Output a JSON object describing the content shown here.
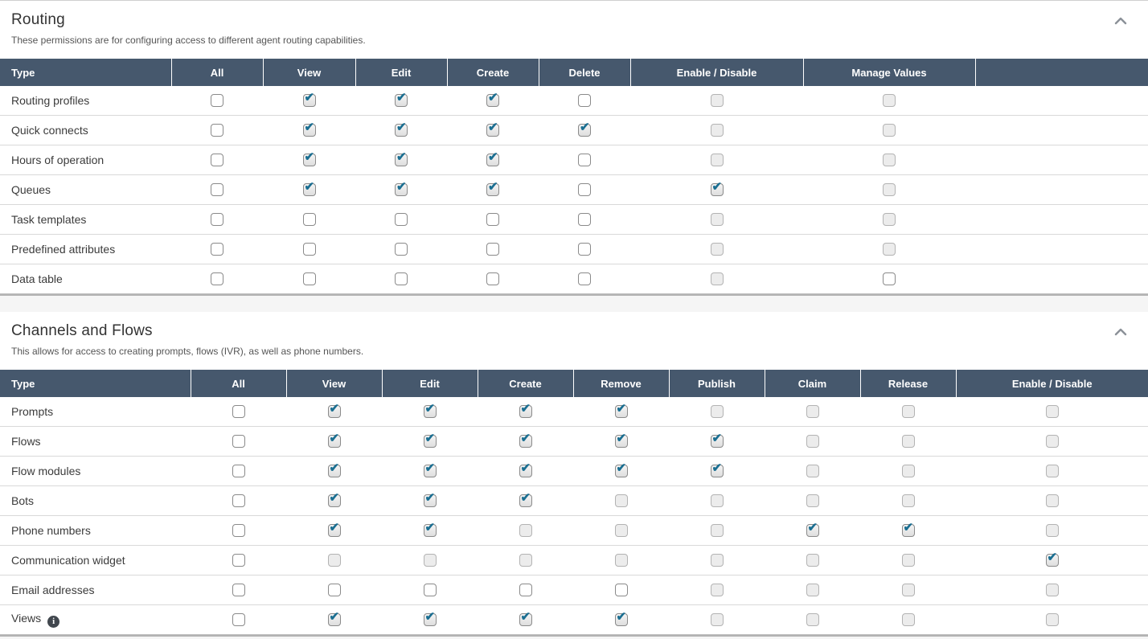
{
  "colors": {
    "table_header_bg": "#46586d",
    "table_header_text": "#ffffff",
    "checkmark": "#1a6e91",
    "disabled_checkbox_bg": "#ececec",
    "divider": "#b3b3b3"
  },
  "icons": {
    "collapse": "chevron-up",
    "checkmark_glyph": "✔",
    "info_glyph": "i"
  },
  "sections": [
    {
      "title": "Routing",
      "description": "These permissions are for configuring access to different agent routing capabilities.",
      "columns": [
        "Type",
        "All",
        "View",
        "Edit",
        "Create",
        "Delete",
        "Enable / Disable",
        "Manage Values",
        ""
      ],
      "rows": [
        {
          "label": "Routing profiles",
          "cells": [
            "unchecked",
            "checked",
            "checked",
            "checked",
            "unchecked",
            "disabled",
            "disabled"
          ]
        },
        {
          "label": "Quick connects",
          "cells": [
            "unchecked",
            "checked",
            "checked",
            "checked",
            "checked",
            "disabled",
            "disabled"
          ]
        },
        {
          "label": "Hours of operation",
          "cells": [
            "unchecked",
            "checked",
            "checked",
            "checked",
            "unchecked",
            "disabled",
            "disabled"
          ]
        },
        {
          "label": "Queues",
          "cells": [
            "unchecked",
            "checked",
            "checked",
            "checked",
            "unchecked",
            "checked",
            "disabled"
          ]
        },
        {
          "label": "Task templates",
          "cells": [
            "unchecked",
            "unchecked",
            "unchecked",
            "unchecked",
            "unchecked",
            "disabled",
            "disabled"
          ]
        },
        {
          "label": "Predefined attributes",
          "cells": [
            "unchecked",
            "unchecked",
            "unchecked",
            "unchecked",
            "unchecked",
            "disabled",
            "disabled"
          ]
        },
        {
          "label": "Data table",
          "cells": [
            "unchecked",
            "unchecked",
            "unchecked",
            "unchecked",
            "unchecked",
            "disabled",
            "unchecked"
          ]
        }
      ]
    },
    {
      "title": "Channels and Flows",
      "description": "This allows for access to creating prompts, flows (IVR), as well as phone numbers.",
      "columns": [
        "Type",
        "All",
        "View",
        "Edit",
        "Create",
        "Remove",
        "Publish",
        "Claim",
        "Release",
        "Enable / Disable"
      ],
      "rows": [
        {
          "label": "Prompts",
          "cells": [
            "unchecked",
            "checked",
            "checked",
            "checked",
            "checked",
            "disabled",
            "disabled",
            "disabled",
            "disabled"
          ]
        },
        {
          "label": "Flows",
          "cells": [
            "unchecked",
            "checked",
            "checked",
            "checked",
            "checked",
            "checked",
            "disabled",
            "disabled",
            "disabled"
          ]
        },
        {
          "label": "Flow modules",
          "cells": [
            "unchecked",
            "checked",
            "checked",
            "checked",
            "checked",
            "checked",
            "disabled",
            "disabled",
            "disabled"
          ]
        },
        {
          "label": "Bots",
          "cells": [
            "unchecked",
            "checked",
            "checked",
            "checked",
            "disabled",
            "disabled",
            "disabled",
            "disabled",
            "disabled"
          ]
        },
        {
          "label": "Phone numbers",
          "cells": [
            "unchecked",
            "checked",
            "checked",
            "disabled",
            "disabled",
            "disabled",
            "checked",
            "checked",
            "disabled"
          ]
        },
        {
          "label": "Communication widget",
          "cells": [
            "unchecked",
            "disabled",
            "disabled",
            "disabled",
            "disabled",
            "disabled",
            "disabled",
            "disabled",
            "checked"
          ]
        },
        {
          "label": "Email addresses",
          "cells": [
            "unchecked",
            "unchecked",
            "unchecked",
            "unchecked",
            "unchecked",
            "disabled",
            "disabled",
            "disabled",
            "disabled"
          ]
        },
        {
          "label": "Views",
          "info": true,
          "cells": [
            "unchecked",
            "checked",
            "checked",
            "checked",
            "checked",
            "disabled",
            "disabled",
            "disabled",
            "disabled"
          ]
        }
      ]
    }
  ]
}
